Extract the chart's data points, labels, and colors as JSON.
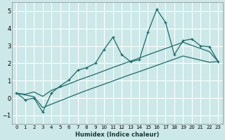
{
  "xlabel": "Humidex (Indice chaleur)",
  "ylabel": "",
  "background_color": "#cce8e8",
  "grid_color": "#ffffff",
  "line_color": "#1a6b6b",
  "xlim": [
    -0.5,
    23.5
  ],
  "ylim": [
    -1.5,
    5.5
  ],
  "xticks": [
    0,
    1,
    2,
    3,
    4,
    5,
    6,
    7,
    8,
    9,
    10,
    11,
    12,
    13,
    14,
    15,
    16,
    17,
    18,
    19,
    20,
    21,
    22,
    23
  ],
  "yticks": [
    -1,
    0,
    1,
    2,
    3,
    4,
    5
  ],
  "x_data": [
    0,
    1,
    2,
    3,
    4,
    5,
    6,
    7,
    8,
    9,
    10,
    11,
    12,
    13,
    14,
    15,
    16,
    17,
    18,
    19,
    20,
    21,
    22,
    23
  ],
  "y_zigzag": [
    0.3,
    -0.1,
    0.0,
    -0.8,
    0.3,
    0.7,
    1.05,
    1.6,
    1.75,
    2.0,
    2.8,
    3.5,
    2.5,
    2.1,
    2.2,
    3.8,
    5.1,
    4.35,
    2.5,
    3.3,
    3.4,
    3.0,
    2.95,
    2.1
  ],
  "y_line_upper": [
    0.28,
    0.22,
    0.35,
    0.1,
    0.45,
    0.63,
    0.82,
    1.02,
    1.2,
    1.38,
    1.57,
    1.76,
    1.94,
    2.12,
    2.3,
    2.49,
    2.67,
    2.85,
    3.03,
    3.21,
    3.03,
    2.85,
    2.67,
    2.1
  ],
  "y_line_lower": [
    0.28,
    0.18,
    0.08,
    -0.55,
    -0.35,
    -0.15,
    0.05,
    0.25,
    0.44,
    0.62,
    0.8,
    0.98,
    1.17,
    1.35,
    1.52,
    1.7,
    1.88,
    2.06,
    2.24,
    2.42,
    2.3,
    2.18,
    2.06,
    2.1
  ]
}
